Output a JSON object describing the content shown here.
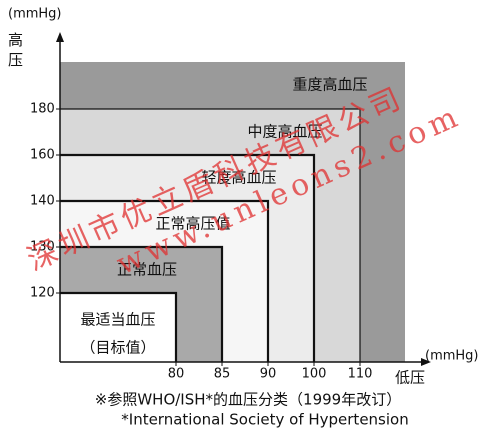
{
  "chart_data": {
    "type": "region",
    "y_unit": "(mmHg)",
    "y_label": "高压",
    "x_unit": "(mmHg)",
    "x_label": "低压",
    "xticks": [
      80,
      85,
      90,
      100,
      110
    ],
    "yticks": [
      120,
      130,
      140,
      160,
      180
    ],
    "regions": [
      {
        "label": "重度高血压",
        "color": "#9a9a9a"
      },
      {
        "label": "中度高血压",
        "x": 110,
        "y": 180,
        "color": "#d8d8d8"
      },
      {
        "label": "轻度高血压",
        "x": 100,
        "y": 160,
        "color": "#ececec"
      },
      {
        "label": "正常高压值",
        "x": 90,
        "y": 140,
        "color": "#f6f6f6"
      },
      {
        "label": "正常血压",
        "x": 85,
        "y": 130,
        "color": "#a9a9a9"
      },
      {
        "label": "最适当血压",
        "sublabel": "（目标值）",
        "x": 80,
        "y": 120,
        "color": "#ffffff"
      }
    ],
    "notes": [
      "※参照WHO/ISH*的血压分类（1999年改订）",
      "*International Society of Hypertension"
    ],
    "watermark": [
      "深圳市优立盾科技有限公司",
      "www.unleons2.com"
    ]
  }
}
